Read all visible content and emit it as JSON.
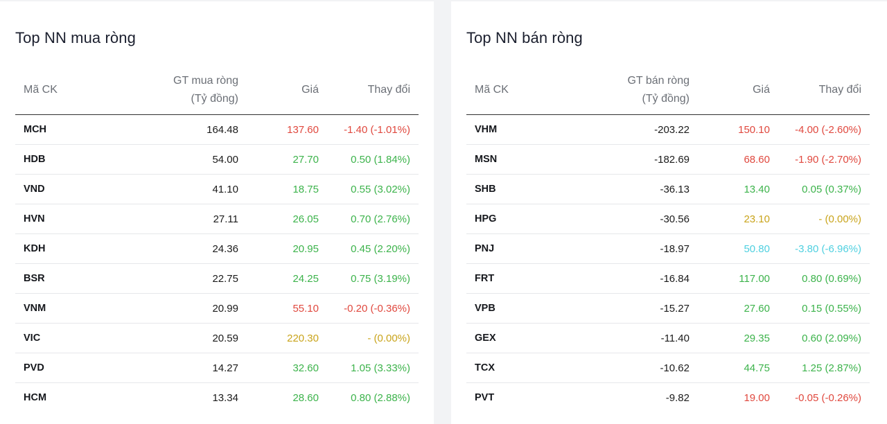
{
  "buy": {
    "title": "Top NN mua ròng",
    "headers": {
      "symbol": "Mã CK",
      "value_line1": "GT mua ròng",
      "value_line2": "(Tỷ đồng)",
      "price": "Giá",
      "change": "Thay đổi"
    },
    "rows": [
      {
        "symbol": "MCH",
        "value": "164.48",
        "price": "137.60",
        "change": "-1.40 (-1.01%)",
        "color": "#e0483e"
      },
      {
        "symbol": "HDB",
        "value": "54.00",
        "price": "27.70",
        "change": "0.50 (1.84%)",
        "color": "#3cb34b"
      },
      {
        "symbol": "VND",
        "value": "41.10",
        "price": "18.75",
        "change": "0.55 (3.02%)",
        "color": "#3cb34b"
      },
      {
        "symbol": "HVN",
        "value": "27.11",
        "price": "26.05",
        "change": "0.70 (2.76%)",
        "color": "#3cb34b"
      },
      {
        "symbol": "KDH",
        "value": "24.36",
        "price": "20.95",
        "change": "0.45 (2.20%)",
        "color": "#3cb34b"
      },
      {
        "symbol": "BSR",
        "value": "22.75",
        "price": "24.25",
        "change": "0.75 (3.19%)",
        "color": "#3cb34b"
      },
      {
        "symbol": "VNM",
        "value": "20.99",
        "price": "55.10",
        "change": "-0.20 (-0.36%)",
        "color": "#e0483e"
      },
      {
        "symbol": "VIC",
        "value": "20.59",
        "price": "220.30",
        "change": "- (0.00%)",
        "color": "#c9a41b"
      },
      {
        "symbol": "PVD",
        "value": "14.27",
        "price": "32.60",
        "change": "1.05 (3.33%)",
        "color": "#3cb34b"
      },
      {
        "symbol": "HCM",
        "value": "13.34",
        "price": "28.60",
        "change": "0.80 (2.88%)",
        "color": "#3cb34b"
      }
    ]
  },
  "sell": {
    "title": "Top NN bán ròng",
    "headers": {
      "symbol": "Mã CK",
      "value_line1": "GT bán ròng",
      "value_line2": "(Tỷ đồng)",
      "price": "Giá",
      "change": "Thay đổi"
    },
    "rows": [
      {
        "symbol": "VHM",
        "value": "-203.22",
        "price": "150.10",
        "change": "-4.00 (-2.60%)",
        "color": "#e0483e"
      },
      {
        "symbol": "MSN",
        "value": "-182.69",
        "price": "68.60",
        "change": "-1.90 (-2.70%)",
        "color": "#e0483e"
      },
      {
        "symbol": "SHB",
        "value": "-36.13",
        "price": "13.40",
        "change": "0.05 (0.37%)",
        "color": "#3cb34b"
      },
      {
        "symbol": "HPG",
        "value": "-30.56",
        "price": "23.10",
        "change": "- (0.00%)",
        "color": "#c9a41b"
      },
      {
        "symbol": "PNJ",
        "value": "-18.97",
        "price": "50.80",
        "change": "-3.80 (-6.96%)",
        "color": "#4fd0e0"
      },
      {
        "symbol": "FRT",
        "value": "-16.84",
        "price": "117.00",
        "change": "0.80 (0.69%)",
        "color": "#3cb34b"
      },
      {
        "symbol": "VPB",
        "value": "-15.27",
        "price": "27.60",
        "change": "0.15 (0.55%)",
        "color": "#3cb34b"
      },
      {
        "symbol": "GEX",
        "value": "-11.40",
        "price": "29.35",
        "change": "0.60 (2.09%)",
        "color": "#3cb34b"
      },
      {
        "symbol": "TCX",
        "value": "-10.62",
        "price": "44.75",
        "change": "1.25 (2.87%)",
        "color": "#3cb34b"
      },
      {
        "symbol": "PVT",
        "value": "-9.82",
        "price": "19.00",
        "change": "-0.05 (-0.26%)",
        "color": "#e0483e"
      }
    ]
  }
}
